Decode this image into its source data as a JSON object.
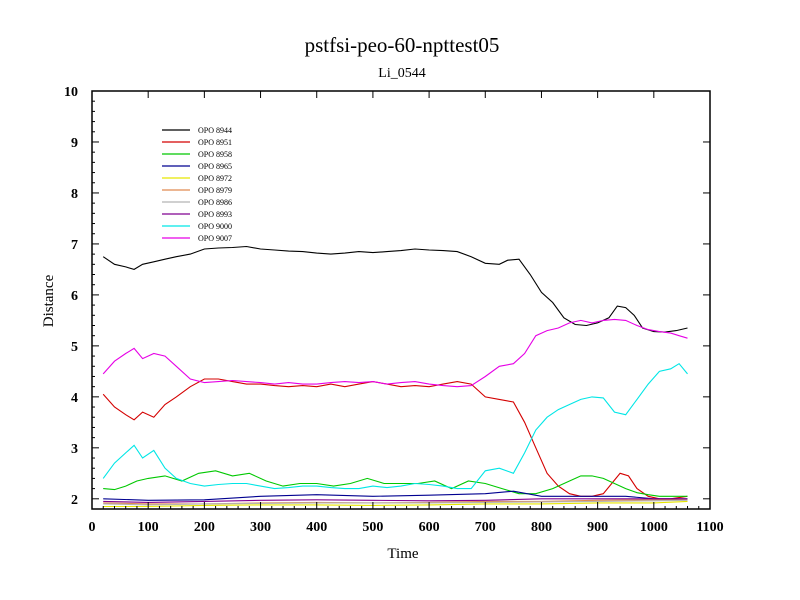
{
  "chart_data": {
    "type": "line",
    "title": "pstfsi-peo-60-npttest05",
    "subtitle": "Li_0544",
    "xlabel": "Time",
    "ylabel": "Distance",
    "xlim": [
      0,
      1100
    ],
    "ylim": [
      1.8,
      10
    ],
    "xticks": [
      0,
      100,
      200,
      300,
      400,
      500,
      600,
      700,
      800,
      900,
      1000,
      1100
    ],
    "yticks": [
      2,
      3,
      4,
      5,
      6,
      7,
      8,
      9,
      10
    ],
    "legend_position": "top-left",
    "grid": false,
    "series": [
      {
        "name": "OPO 8944",
        "color": "#000000",
        "x": [
          20,
          40,
          60,
          75,
          90,
          110,
          130,
          150,
          175,
          200,
          225,
          250,
          275,
          300,
          325,
          350,
          375,
          400,
          425,
          450,
          475,
          500,
          525,
          550,
          575,
          600,
          625,
          650,
          675,
          700,
          725,
          740,
          760,
          780,
          800,
          820,
          840,
          860,
          880,
          900,
          920,
          935,
          950,
          965,
          980,
          1000,
          1020,
          1040,
          1060
        ],
        "y": [
          6.75,
          6.6,
          6.55,
          6.5,
          6.6,
          6.65,
          6.7,
          6.75,
          6.8,
          6.9,
          6.92,
          6.93,
          6.95,
          6.9,
          6.88,
          6.86,
          6.85,
          6.82,
          6.8,
          6.82,
          6.85,
          6.83,
          6.85,
          6.87,
          6.9,
          6.88,
          6.87,
          6.85,
          6.75,
          6.62,
          6.6,
          6.68,
          6.7,
          6.4,
          6.05,
          5.85,
          5.55,
          5.42,
          5.4,
          5.45,
          5.55,
          5.78,
          5.75,
          5.6,
          5.35,
          5.28,
          5.27,
          5.3,
          5.35
        ]
      },
      {
        "name": "OPO 8951",
        "color": "#d40000",
        "x": [
          20,
          40,
          60,
          75,
          90,
          110,
          130,
          150,
          175,
          200,
          225,
          250,
          275,
          300,
          325,
          350,
          375,
          400,
          425,
          450,
          475,
          500,
          525,
          550,
          575,
          600,
          625,
          650,
          675,
          700,
          725,
          750,
          770,
          790,
          810,
          830,
          850,
          870,
          890,
          910,
          925,
          940,
          955,
          970,
          990,
          1010,
          1030,
          1060
        ],
        "y": [
          4.05,
          3.8,
          3.65,
          3.55,
          3.7,
          3.6,
          3.85,
          4.0,
          4.2,
          4.35,
          4.35,
          4.3,
          4.25,
          4.25,
          4.22,
          4.2,
          4.22,
          4.2,
          4.25,
          4.2,
          4.25,
          4.3,
          4.25,
          4.2,
          4.22,
          4.2,
          4.25,
          4.3,
          4.25,
          4.0,
          3.95,
          3.9,
          3.5,
          3.0,
          2.5,
          2.25,
          2.1,
          2.05,
          2.05,
          2.1,
          2.3,
          2.5,
          2.45,
          2.2,
          2.05,
          2.0,
          2.0,
          2.05
        ]
      },
      {
        "name": "OPO 8958",
        "color": "#00c800",
        "x": [
          20,
          40,
          60,
          80,
          100,
          130,
          160,
          190,
          220,
          250,
          280,
          310,
          340,
          370,
          400,
          430,
          460,
          490,
          520,
          550,
          580,
          610,
          640,
          670,
          700,
          730,
          760,
          790,
          820,
          850,
          870,
          890,
          910,
          930,
          950,
          970,
          990,
          1010,
          1030,
          1060
        ],
        "y": [
          2.2,
          2.18,
          2.25,
          2.35,
          2.4,
          2.45,
          2.35,
          2.5,
          2.55,
          2.45,
          2.5,
          2.35,
          2.25,
          2.3,
          2.3,
          2.25,
          2.3,
          2.4,
          2.3,
          2.3,
          2.3,
          2.35,
          2.2,
          2.35,
          2.3,
          2.2,
          2.1,
          2.1,
          2.2,
          2.35,
          2.45,
          2.45,
          2.4,
          2.3,
          2.2,
          2.12,
          2.08,
          2.05,
          2.05,
          2.05
        ]
      },
      {
        "name": "OPO 8965",
        "color": "#000090",
        "x": [
          20,
          100,
          200,
          300,
          400,
          500,
          600,
          700,
          750,
          800,
          850,
          900,
          950,
          1000,
          1060
        ],
        "y": [
          2.0,
          1.97,
          1.98,
          2.05,
          2.08,
          2.05,
          2.07,
          2.1,
          2.15,
          2.05,
          2.05,
          2.05,
          2.05,
          2.0,
          2.0
        ]
      },
      {
        "name": "OPO 8972",
        "color": "#e6e600",
        "x": [
          20,
          100,
          200,
          300,
          400,
          500,
          600,
          700,
          800,
          900,
          1000,
          1060
        ],
        "y": [
          1.85,
          1.85,
          1.87,
          1.88,
          1.88,
          1.87,
          1.88,
          1.9,
          1.9,
          1.92,
          1.92,
          1.95
        ]
      },
      {
        "name": "OPO 8979",
        "color": "#e08a50",
        "x": [
          20,
          100,
          200,
          300,
          400,
          500,
          600,
          700,
          800,
          900,
          1000,
          1060
        ],
        "y": [
          1.92,
          1.9,
          1.9,
          1.92,
          1.93,
          1.92,
          1.93,
          1.95,
          1.95,
          1.97,
          1.98,
          1.98
        ]
      },
      {
        "name": "OPO 8986",
        "color": "#b4b4b4",
        "x": [
          20,
          100,
          200,
          300,
          400,
          500,
          600,
          700,
          800,
          900,
          1000,
          1060
        ],
        "y": [
          1.9,
          1.88,
          1.9,
          1.91,
          1.92,
          1.92,
          1.92,
          1.93,
          1.94,
          1.95,
          1.96,
          1.97
        ]
      },
      {
        "name": "OPO 8993",
        "color": "#800090",
        "x": [
          20,
          100,
          200,
          300,
          400,
          500,
          600,
          700,
          800,
          900,
          1000,
          1060
        ],
        "y": [
          1.95,
          1.93,
          1.95,
          1.97,
          1.98,
          1.97,
          1.96,
          1.97,
          2.0,
          2.0,
          2.0,
          2.0
        ]
      },
      {
        "name": "OPO 9000",
        "color": "#00e6e6",
        "x": [
          20,
          40,
          60,
          75,
          90,
          110,
          130,
          150,
          175,
          200,
          225,
          250,
          275,
          300,
          325,
          350,
          375,
          400,
          425,
          450,
          475,
          500,
          525,
          550,
          575,
          600,
          625,
          650,
          675,
          700,
          725,
          750,
          770,
          790,
          810,
          830,
          850,
          870,
          890,
          910,
          930,
          950,
          970,
          990,
          1010,
          1030,
          1045,
          1060
        ],
        "y": [
          2.4,
          2.7,
          2.9,
          3.05,
          2.8,
          2.95,
          2.6,
          2.4,
          2.3,
          2.25,
          2.28,
          2.3,
          2.3,
          2.25,
          2.2,
          2.22,
          2.25,
          2.25,
          2.22,
          2.2,
          2.2,
          2.25,
          2.22,
          2.25,
          2.3,
          2.28,
          2.25,
          2.2,
          2.2,
          2.55,
          2.6,
          2.5,
          2.9,
          3.35,
          3.6,
          3.75,
          3.85,
          3.95,
          4.0,
          3.98,
          3.7,
          3.65,
          3.95,
          4.25,
          4.5,
          4.55,
          4.65,
          4.45
        ]
      },
      {
        "name": "OPO 9007",
        "color": "#e600e6",
        "x": [
          20,
          40,
          60,
          75,
          90,
          110,
          130,
          150,
          175,
          200,
          225,
          250,
          275,
          300,
          325,
          350,
          375,
          400,
          425,
          450,
          475,
          500,
          525,
          550,
          575,
          600,
          625,
          650,
          675,
          700,
          725,
          750,
          770,
          790,
          810,
          830,
          850,
          870,
          890,
          910,
          930,
          950,
          970,
          990,
          1010,
          1030,
          1045,
          1060
        ],
        "y": [
          4.45,
          4.7,
          4.85,
          4.95,
          4.75,
          4.85,
          4.8,
          4.6,
          4.35,
          4.28,
          4.3,
          4.32,
          4.3,
          4.28,
          4.25,
          4.28,
          4.25,
          4.25,
          4.28,
          4.3,
          4.28,
          4.3,
          4.25,
          4.28,
          4.3,
          4.25,
          4.22,
          4.2,
          4.22,
          4.4,
          4.6,
          4.65,
          4.85,
          5.2,
          5.3,
          5.35,
          5.45,
          5.5,
          5.45,
          5.5,
          5.52,
          5.5,
          5.4,
          5.32,
          5.28,
          5.25,
          5.2,
          5.15
        ]
      }
    ]
  }
}
